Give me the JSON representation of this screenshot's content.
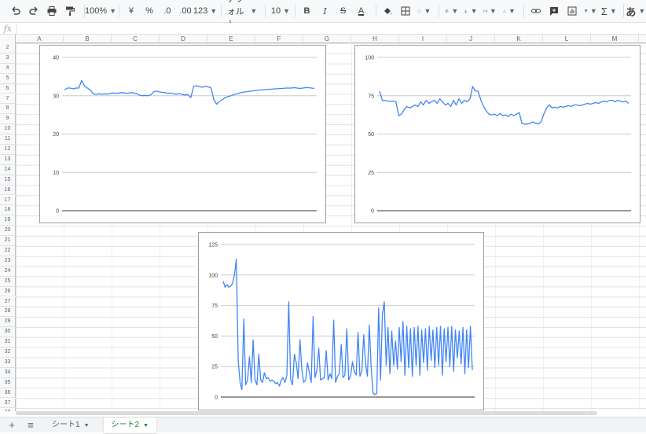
{
  "toolbar": {
    "zoom": "100%",
    "currency": "¥",
    "percent": "%",
    "decrease_decimal": ".0",
    "increase_decimal": ".00",
    "number_format": "123",
    "font": "デフォルト...",
    "font_size": "10",
    "bold": "B",
    "italic": "I",
    "strike": "S",
    "text_color": "A",
    "input_tools": "あ"
  },
  "formula_bar": {
    "fx": "fx",
    "value": ""
  },
  "columns": [
    "A",
    "B",
    "C",
    "D",
    "E",
    "F",
    "G",
    "H",
    "I",
    "J",
    "K",
    "L",
    "M"
  ],
  "rows": [
    "2",
    "3",
    "4",
    "5",
    "6",
    "7",
    "8",
    "9",
    "10",
    "11",
    "12",
    "13",
    "14",
    "15",
    "16",
    "17",
    "18",
    "19",
    "20",
    "21",
    "22",
    "23",
    "24",
    "25",
    "26",
    "27",
    "28",
    "29",
    "30",
    "31",
    "32",
    "33",
    "34",
    "35",
    "36",
    "37",
    "38"
  ],
  "sheets": [
    {
      "label": "シート1",
      "active": false
    },
    {
      "label": "シート2",
      "active": true
    }
  ],
  "colors": {
    "line": "#4285f4",
    "active_tab": "#188038"
  },
  "chart_data": [
    {
      "type": "line",
      "ylim": [
        0,
        40
      ],
      "yticks": [
        "0",
        "10",
        "20",
        "30",
        "40"
      ],
      "grid": true,
      "values": [
        31.5,
        32,
        32,
        31.8,
        32,
        32,
        34,
        32.5,
        32,
        31.5,
        30.5,
        30.3,
        30.5,
        30.4,
        30.5,
        30.4,
        30.6,
        30.7,
        30.6,
        30.7,
        30.8,
        30.7,
        30.6,
        30.8,
        30.7,
        30.6,
        30.2,
        30,
        30.1,
        30,
        30.2,
        31,
        31.2,
        31,
        30.9,
        30.8,
        30.6,
        30.7,
        30.5,
        30.4,
        30.6,
        30.3,
        30.2,
        30.3,
        29.5,
        32.5,
        32.6,
        32.4,
        32.2,
        32.5,
        32.3,
        32.1,
        29,
        27.8,
        28.5,
        29,
        29.5,
        29.8,
        30,
        30.3,
        30.5,
        30.7,
        30.9,
        31,
        31.1,
        31.2,
        31.3,
        31.4,
        31.5,
        31.5,
        31.6,
        31.7,
        31.7,
        31.8,
        31.8,
        31.9,
        31.9,
        32,
        32,
        32,
        32.1,
        32,
        31.9,
        32,
        32.1,
        32.1,
        32,
        31.9
      ]
    },
    {
      "type": "line",
      "ylim": [
        0,
        100
      ],
      "yticks": [
        "0",
        "25",
        "50",
        "75",
        "100"
      ],
      "grid": true,
      "values": [
        78,
        72,
        72,
        71.5,
        71.5,
        71.5,
        71,
        62,
        63,
        66,
        68,
        67,
        68,
        69,
        68,
        71,
        69,
        72,
        70,
        71,
        72,
        70,
        73,
        71,
        69,
        70,
        68,
        72,
        69,
        73,
        70,
        72,
        71,
        73,
        81,
        78,
        78,
        72,
        68,
        65,
        63,
        62.5,
        63,
        62,
        63.5,
        62,
        62.5,
        61.5,
        63,
        62,
        63,
        64,
        57,
        56.5,
        56.5,
        57,
        58,
        57,
        56.5,
        58,
        63,
        67,
        69,
        67,
        67.5,
        67,
        68,
        67.5,
        68,
        68.5,
        68,
        69,
        69,
        68.5,
        69,
        69.5,
        70,
        69.5,
        70,
        70.5,
        70,
        71,
        71.5,
        71,
        72,
        72,
        71,
        72,
        71.5,
        71,
        71.5,
        70
      ]
    },
    {
      "type": "line",
      "ylim": [
        0,
        125
      ],
      "yticks": [
        "0",
        "25",
        "50",
        "75",
        "100",
        "125"
      ],
      "grid": true,
      "values": [
        95,
        90,
        92,
        90,
        91,
        93,
        100,
        113,
        30,
        12,
        6,
        64,
        10,
        14,
        33,
        12,
        47,
        14,
        10,
        35,
        14,
        12,
        20,
        15,
        16,
        13,
        14,
        13,
        11,
        12,
        9,
        14,
        16,
        12,
        18,
        78,
        14,
        10,
        35,
        28,
        15,
        47,
        22,
        12,
        14,
        28,
        20,
        12,
        66,
        16,
        22,
        40,
        14,
        15,
        16,
        38,
        14,
        19,
        15,
        63,
        12,
        17,
        19,
        43,
        16,
        18,
        56,
        14,
        17,
        29,
        21,
        18,
        53,
        17,
        21,
        51,
        28,
        17,
        59,
        24,
        3,
        2,
        3,
        73,
        14,
        68,
        78,
        26,
        57,
        19,
        54,
        26,
        46,
        23,
        57,
        29,
        62,
        18,
        58,
        24,
        56,
        17,
        57,
        26,
        58,
        18,
        55,
        28,
        56,
        22,
        58,
        30,
        55,
        24,
        57,
        26,
        58,
        18,
        56,
        29,
        57,
        25,
        58,
        21,
        55,
        32,
        54,
        27,
        57,
        19,
        55,
        24,
        58,
        22
      ]
    }
  ]
}
